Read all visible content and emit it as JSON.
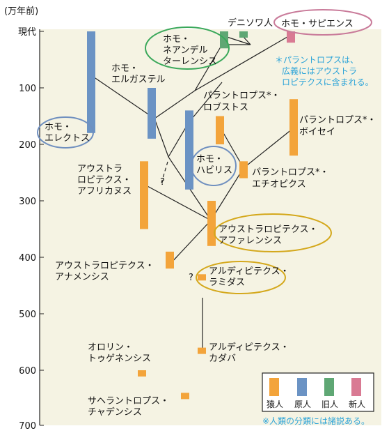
{
  "axis": {
    "unit_label": "(万年前)",
    "tick_labels": [
      "現代",
      "100",
      "200",
      "300",
      "400",
      "500",
      "600",
      "700"
    ],
    "tick_values": [
      0,
      100,
      200,
      300,
      400,
      500,
      600,
      700
    ]
  },
  "colors": {
    "ape_man": "#f3a43b",
    "primitive_man": "#6b93c4",
    "old_man": "#5fa774",
    "new_man": "#d97a93",
    "panel_bg": "#f5f3e3",
    "note_text": "#2aa3d8",
    "ellipse_blue": "#6f8fbf",
    "ellipse_green": "#3aa85a",
    "ellipse_yellow": "#d4a81c",
    "ellipse_pink": "#c97b9a"
  },
  "species": [
    {
      "id": "denisovan",
      "label": [
        "デニソワ人"
      ],
      "category": "old_man",
      "start": 10,
      "end": 0
    },
    {
      "id": "sapiens",
      "label": [
        "ホモ・サピエンス"
      ],
      "category": "new_man",
      "start": 20,
      "end": 0
    },
    {
      "id": "neanderthal",
      "label": [
        "ホモ・",
        "ネアンデル",
        "ターレンシス"
      ],
      "category": "old_man",
      "start": 30,
      "end": 0
    },
    {
      "id": "ergaster",
      "label": [
        "ホモ・",
        "エルガステル"
      ],
      "category": "primitive_man",
      "start": 190,
      "end": 100
    },
    {
      "id": "erectus",
      "label": [
        "ホモ・",
        "エレクトス"
      ],
      "category": "primitive_man",
      "start": 180,
      "end": 0
    },
    {
      "id": "habilis",
      "label": [
        "ホモ・",
        "ハビリス"
      ],
      "category": "primitive_man",
      "start": 280,
      "end": 140
    },
    {
      "id": "africanus",
      "label": [
        "アウストラ",
        "ロピテクス・",
        "アフリカヌス"
      ],
      "category": "ape_man",
      "start": 350,
      "end": 230
    },
    {
      "id": "robustus",
      "label": [
        "パラントロプス*・",
        "ロブストス"
      ],
      "category": "ape_man",
      "start": 200,
      "end": 150
    },
    {
      "id": "boisei",
      "label": [
        "パラントロプス*・",
        "ボイセイ"
      ],
      "category": "ape_man",
      "start": 220,
      "end": 120
    },
    {
      "id": "aethiopicus",
      "label": [
        "パラントロプス*・",
        "エチオピクス"
      ],
      "category": "ape_man",
      "start": 260,
      "end": 230
    },
    {
      "id": "afarensis",
      "label": [
        "アウストラロピテクス・",
        "アファレンシス"
      ],
      "category": "ape_man",
      "start": 380,
      "end": 300
    },
    {
      "id": "anamensis",
      "label": [
        "アウストラロピテクス・",
        "アナメンシス"
      ],
      "category": "ape_man",
      "start": 420,
      "end": 390
    },
    {
      "id": "ramidus",
      "label": [
        "アルディピテクス・",
        "ラミダス"
      ],
      "category": "ape_man",
      "start": 440,
      "end": 430
    },
    {
      "id": "kadabba",
      "label": [
        "アルディピテクス・",
        "カダバ"
      ],
      "category": "ape_man",
      "start": 570,
      "end": 560
    },
    {
      "id": "tugenensis",
      "label": [
        "オロリン・",
        "トゥゲネンシス"
      ],
      "category": "ape_man",
      "start": 610,
      "end": 600
    },
    {
      "id": "tchadensis",
      "label": [
        "サヘラントロプス・",
        "チャデンシス"
      ],
      "category": "ape_man",
      "start": 650,
      "end": 640
    }
  ],
  "question_marks": [
    "?",
    "?"
  ],
  "note_top": [
    "＊パラントロプスは、",
    "広義にはアウストラ",
    "ロピテクスに含まれる。"
  ],
  "legend": {
    "items": [
      {
        "label": "猿人",
        "color_key": "ape_man"
      },
      {
        "label": "原人",
        "color_key": "primitive_man"
      },
      {
        "label": "旧人",
        "color_key": "old_man"
      },
      {
        "label": "新人",
        "color_key": "new_man"
      }
    ]
  },
  "note_bottom": "※人類の分類には諸説ある。"
}
